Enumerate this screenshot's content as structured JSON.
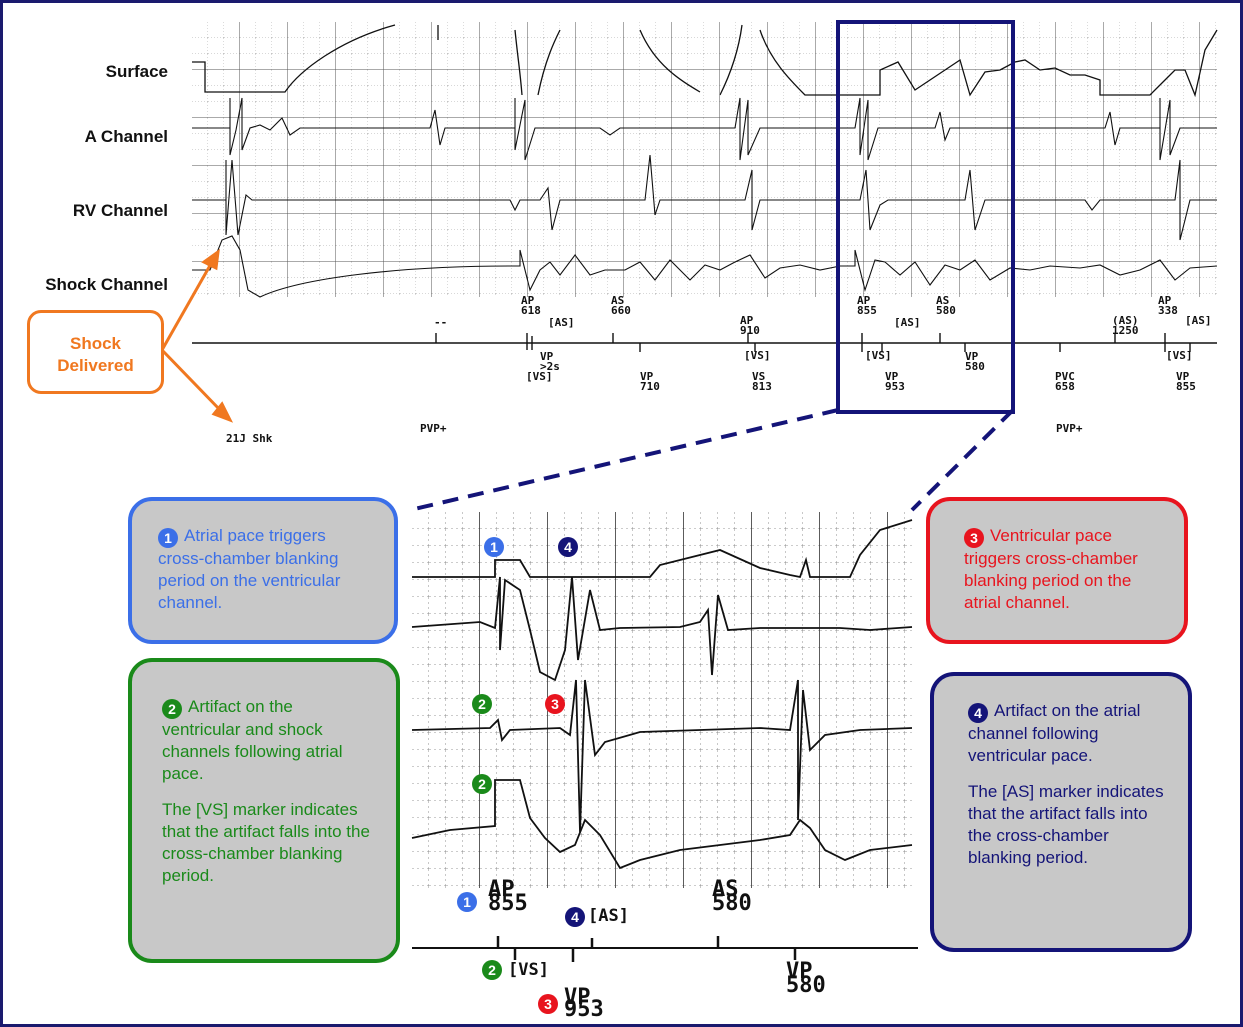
{
  "channels": {
    "surface": "Surface",
    "a": "A Channel",
    "rv": "RV Channel",
    "shock": "Shock Channel"
  },
  "shock_callout": {
    "line1": "Shock",
    "line2": "Delivered"
  },
  "top_markers": {
    "dashes": "--",
    "ap1_label": "AP",
    "ap1_value": "618",
    "as_bracket1": "[AS]",
    "as1_label": "AS",
    "as1_value": "660",
    "ap2_label": "AP",
    "ap2_value": "910",
    "ap3_label": "AP",
    "ap3_value": "855",
    "as_bracket2": "[AS]",
    "as2_label": "AS",
    "as2_value": "580",
    "as_paren_label": "(AS)",
    "as_paren_value": "1250",
    "ap4_label": "AP",
    "ap4_value": "338",
    "as_bracket3": "[AS]",
    "vp1_label": "VP",
    "vp1_extra": ">2s",
    "vs_bracket1": "[VS]",
    "vp2_label": "VP",
    "vp2_value": "710",
    "vs_bracket2": "[VS]",
    "vs_label": "VS",
    "vs_value": "813",
    "vs_bracket3": "[VS]",
    "vp3_label": "VP",
    "vp3_value": "953",
    "vp4_label": "VP",
    "vp4_value": "580",
    "pvc_label": "PVC",
    "pvc_value": "658",
    "vs_bracket4": "[VS]",
    "vp5_label": "VP",
    "vp5_value": "855",
    "shk": "21J Shk",
    "pvp1": "PVP+",
    "pvp2": "PVP+"
  },
  "zoom_markers": {
    "ap_label": "AP",
    "ap_value": "855",
    "as_label": "AS",
    "as_value": "580",
    "as_bracket": "[AS]",
    "vs_bracket": "[VS]",
    "vp1_label": "VP",
    "vp1_value": "580",
    "vp2_label": "VP",
    "vp2_value": "953"
  },
  "badges": {
    "one": "1",
    "two": "2",
    "three": "3",
    "four": "4"
  },
  "callouts": {
    "c1": {
      "num": "1",
      "text": "Atrial pace triggers cross-chamber blanking period on the ventricular channel."
    },
    "c2": {
      "num": "2",
      "text": "Artifact on the ventricular and shock channels following atrial pace.",
      "text2": "The [VS] marker indicates that the artifact falls into the cross-chamber blanking period."
    },
    "c3": {
      "num": "3",
      "text": "Ventricular pace triggers cross-chamber blanking period on the atrial channel."
    },
    "c4": {
      "num": "4",
      "text": "Artifact on the atrial channel following ventricular pace.",
      "text2": "The [AS] marker indicates that the artifact falls into the cross-chamber blanking period."
    }
  },
  "colors": {
    "blue": "#3b6fe8",
    "green": "#1a8a1a",
    "red": "#e8141e",
    "navy": "#141478",
    "orange": "#f07820",
    "callout_bg": "#c8c8c8"
  }
}
